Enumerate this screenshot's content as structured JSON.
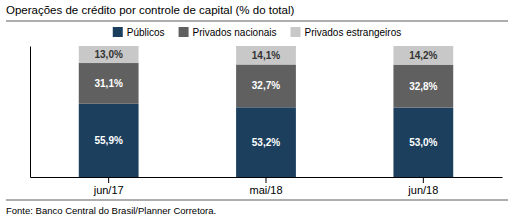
{
  "chart_data": {
    "type": "bar",
    "title": "Operações de crédito por controle de capital (% do total)",
    "categories": [
      "jun/17",
      "mai/18",
      "jun/18"
    ],
    "series": [
      {
        "name": "Públicos",
        "color": "#1c3f5e",
        "values": [
          55.9,
          53.2,
          53.0
        ],
        "value_labels": [
          "55,9%",
          "53,2%",
          "53,0%"
        ]
      },
      {
        "name": "Privados nacionais",
        "color": "#606060",
        "values": [
          31.1,
          32.7,
          32.8
        ],
        "value_labels": [
          "31,1%",
          "32,7%",
          "32,8%"
        ]
      },
      {
        "name": "Privados estrangeiros",
        "color": "#c8c8c8",
        "values": [
          13.0,
          14.1,
          14.2
        ],
        "value_labels": [
          "13,0%",
          "14,1%",
          "14,2%"
        ]
      }
    ],
    "stacked": true,
    "data_labels": true,
    "ylim": [
      0,
      100
    ],
    "tick_labels": "x",
    "legend": "top",
    "annotations": [
      "Fonte: Banco Central do Brasil/Planner Corretora."
    ]
  }
}
